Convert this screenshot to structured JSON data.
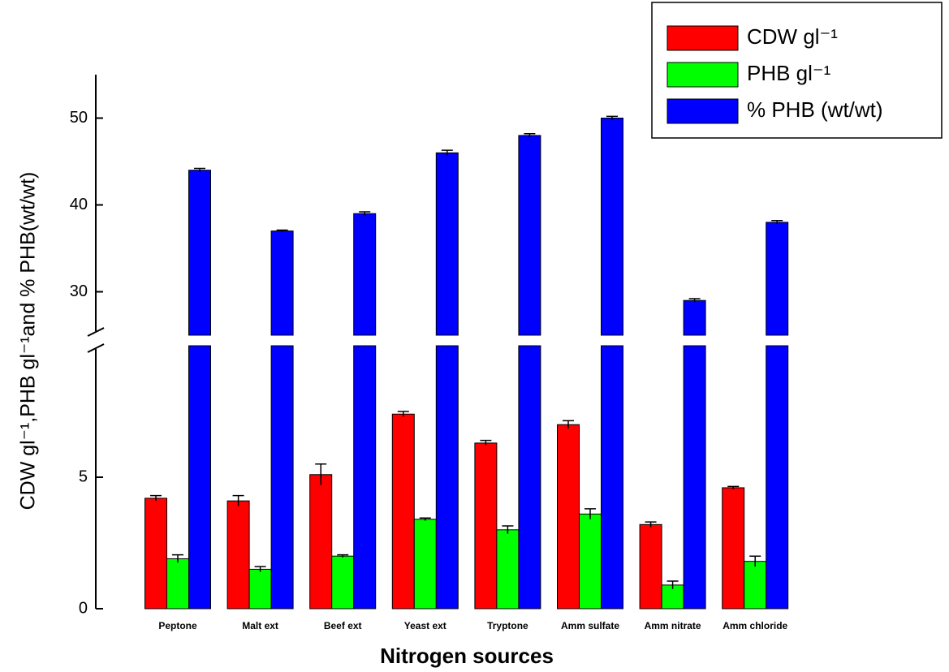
{
  "chart_data": {
    "type": "grouped-bar-broken-axis",
    "x_label": "Nitrogen sources",
    "y_label": "CDW gl⁻¹,PHB gl⁻¹and % PHB(wt/wt)",
    "categories": [
      "Peptone",
      "Malt ext",
      "Beef ext",
      "Yeast ext",
      "Tryptone",
      "Amm sulfate",
      "Amm nitrate",
      "Amm chloride"
    ],
    "axis_segments": [
      {
        "ylim": [
          0,
          10
        ],
        "yticks": [
          0,
          5
        ]
      },
      {
        "ylim": [
          25,
          55
        ],
        "yticks": [
          30,
          40,
          50
        ]
      }
    ],
    "legend": "top-right",
    "series": [
      {
        "name": "CDW gl⁻¹",
        "color": "#ff0000",
        "values": [
          4.2,
          4.1,
          5.1,
          7.4,
          6.3,
          7.0,
          3.2,
          4.6
        ],
        "errors": [
          0.1,
          0.2,
          0.4,
          0.1,
          0.1,
          0.15,
          0.1,
          0.05
        ]
      },
      {
        "name": "PHB gl⁻¹",
        "color": "#00ff00",
        "values": [
          1.9,
          1.5,
          2.0,
          3.4,
          3.0,
          3.6,
          0.9,
          1.8
        ],
        "errors": [
          0.15,
          0.1,
          0.05,
          0.05,
          0.15,
          0.2,
          0.15,
          0.2
        ]
      },
      {
        "name": "% PHB (wt/wt)",
        "color": "#0000ff",
        "values": [
          44,
          37,
          39,
          46,
          48,
          50,
          29,
          38
        ],
        "errors": [
          0.2,
          0.1,
          0.2,
          0.3,
          0.2,
          0.2,
          0.2,
          0.2
        ]
      }
    ]
  }
}
